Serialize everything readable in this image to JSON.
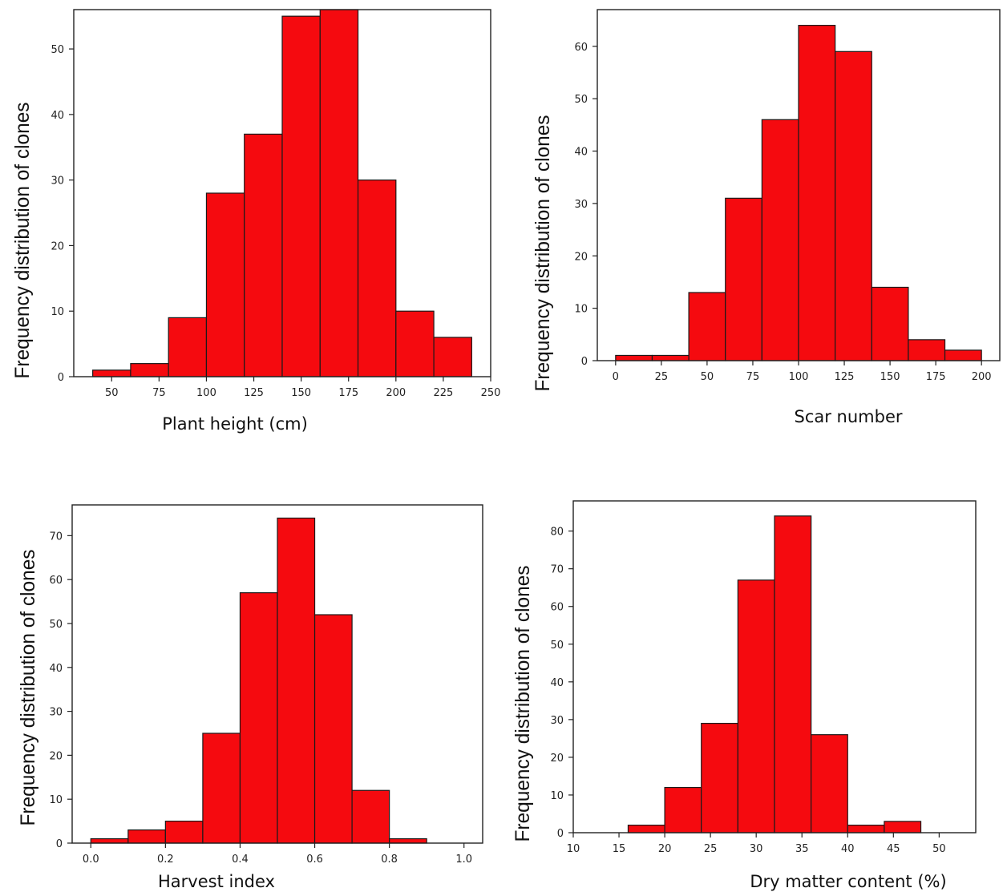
{
  "chart_data": [
    {
      "type": "bar",
      "xlabel": "Plant height (cm)",
      "ylabel": "Frequency distribution of clones",
      "bin_edges": [
        40,
        60,
        80,
        100,
        120,
        140,
        160,
        180,
        200,
        220,
        240
      ],
      "values": [
        1,
        2,
        9,
        28,
        37,
        55,
        56,
        30,
        10,
        6
      ],
      "xlim": [
        30,
        250
      ],
      "ylim": [
        0,
        56
      ],
      "xticks": [
        50,
        75,
        100,
        125,
        150,
        175,
        200,
        225,
        250
      ],
      "yticks": [
        0,
        10,
        20,
        30,
        40,
        50
      ]
    },
    {
      "type": "bar",
      "xlabel": "Scar number",
      "ylabel": "Frequency distribution of clones",
      "bin_edges": [
        0,
        20,
        40,
        60,
        80,
        100,
        120,
        140,
        160,
        180,
        200
      ],
      "values": [
        1,
        1,
        13,
        31,
        46,
        64,
        59,
        14,
        4,
        2
      ],
      "xlim": [
        -10,
        210
      ],
      "ylim": [
        0,
        67
      ],
      "xticks": [
        0,
        25,
        50,
        75,
        100,
        125,
        150,
        175,
        200
      ],
      "yticks": [
        0,
        10,
        20,
        30,
        40,
        50,
        60
      ]
    },
    {
      "type": "bar",
      "xlabel": "Harvest index",
      "ylabel": "Frequency distribution of clones",
      "bin_edges": [
        0.0,
        0.1,
        0.2,
        0.3,
        0.4,
        0.5,
        0.6,
        0.7,
        0.8,
        0.9
      ],
      "values": [
        1,
        3,
        5,
        25,
        57,
        74,
        52,
        12,
        1
      ],
      "xlim": [
        -0.05,
        1.05
      ],
      "ylim": [
        0,
        77
      ],
      "xticks": [
        "0.0",
        "0.2",
        "0.4",
        "0.6",
        "0.8",
        "1.0"
      ],
      "yticks": [
        0,
        10,
        20,
        30,
        40,
        50,
        60,
        70
      ]
    },
    {
      "type": "bar",
      "xlabel": "Dry matter content (%)",
      "ylabel": "Frequency distribution of clones",
      "bin_edges": [
        16,
        20,
        24,
        28,
        32,
        36,
        40,
        44,
        48
      ],
      "values": [
        2,
        12,
        29,
        67,
        84,
        26,
        2,
        3
      ],
      "xlim": [
        10,
        54
      ],
      "ylim": [
        0,
        88
      ],
      "xticks": [
        10,
        15,
        20,
        25,
        30,
        35,
        40,
        45,
        50
      ],
      "yticks": [
        0,
        10,
        20,
        30,
        40,
        50,
        60,
        70,
        80
      ]
    }
  ]
}
